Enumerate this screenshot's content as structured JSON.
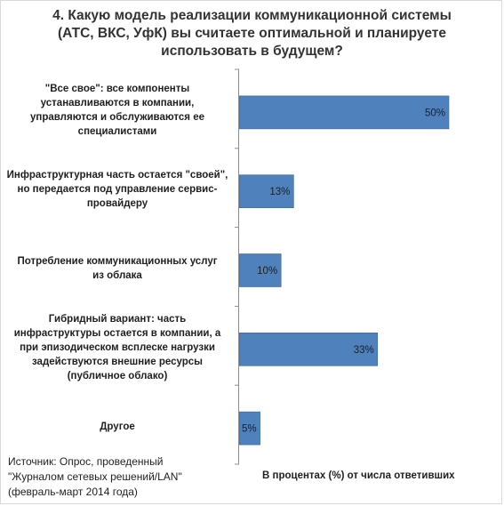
{
  "title": "4. Какую модель реализации коммуникационной системы\n(АТС, ВКС, УфК) вы считаете оптимальной и планируете\nиспользовать в будущем?",
  "chart_data": {
    "type": "bar",
    "orientation": "horizontal",
    "title": "4. Какую модель реализации коммуникационной системы (АТС, ВКС, УфК) вы считаете оптимальной и планируете использовать в будущем?",
    "categories": [
      "\"Все свое\": все компоненты\nустанавливаются в компании,\nуправляются и обслуживаются ее\nспециалистами",
      "Инфраструктурная  часть остается \"своей\",\nно передается под управление сервис-\nпровайдеру",
      "Потребление коммуникационных  услуг\nиз облака",
      "Гибридный вариант: часть\nинфраструктуры остается в компании, а\nпри эпизодическом всплеске нагрузки\nзадействуются внешние ресурсы\n(публичное облако)",
      "Другое"
    ],
    "values": [
      50,
      13,
      10,
      33,
      5
    ],
    "data_labels": [
      "50%",
      "13%",
      "10%",
      "33%",
      "5%"
    ],
    "xlabel": "В процентах (%) от числа ответивших",
    "xlim": [
      0,
      52
    ],
    "grid": false,
    "bar_color": "#4f81bd"
  },
  "source": "Источник: Опрос, проведенный\n\"Журналом сетевых решений/LAN\"\n(февраль-март 2014 года)"
}
